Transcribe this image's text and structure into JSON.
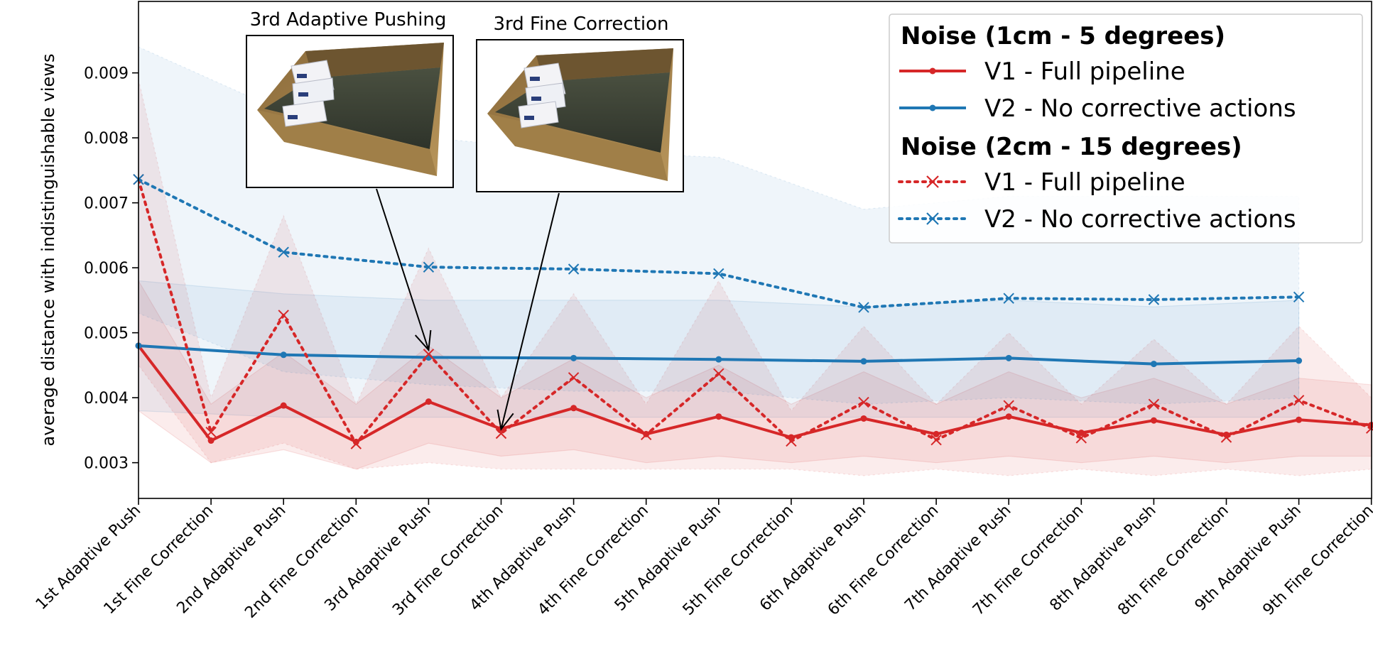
{
  "chart_data": {
    "type": "line",
    "ylabel": "average distance with indistinguishable views",
    "ylim": [
      0.00245,
      0.0101
    ],
    "yticks": [
      "0.003",
      "0.004",
      "0.005",
      "0.006",
      "0.007",
      "0.008",
      "0.009"
    ],
    "yticks_values": [
      0.003,
      0.004,
      0.005,
      0.006,
      0.007,
      0.008,
      0.009
    ],
    "categories": [
      "1st Adaptive Push",
      "1st Fine Correction",
      "2nd Adaptive Push",
      "2nd Fine Correction",
      "3rd Adaptive Push",
      "3rd Fine Correction",
      "4th Adaptive Push",
      "4th Fine Correction",
      "5th Adaptive Push",
      "5th Fine Correction",
      "6th Adaptive Push",
      "6th Fine Correction",
      "7th Adaptive Push",
      "7th Fine Correction",
      "8th Adaptive Push",
      "8th Fine Correction",
      "9th Adaptive Push",
      "9th Fine Correction"
    ],
    "grid": false,
    "legend_position": "top-right",
    "legend_groups": [
      {
        "title": "Noise (1cm - 5 degrees)",
        "series": [
          0,
          1
        ]
      },
      {
        "title": "Noise (2cm - 15 degrees)",
        "series": [
          2,
          3
        ]
      }
    ],
    "series": [
      {
        "name": "V1 - Full pipeline",
        "color": "#d62728",
        "dash": "solid",
        "marker": "dot",
        "values": [
          0.0048,
          0.00334,
          0.00388,
          0.00332,
          0.00394,
          0.00352,
          0.00384,
          0.00344,
          0.00371,
          0.00339,
          0.00368,
          0.00344,
          0.00371,
          0.00346,
          0.00365,
          0.00343,
          0.00366,
          0.00358
        ],
        "band_upper": [
          0.0058,
          0.0039,
          0.0047,
          0.0039,
          0.0048,
          0.004,
          0.0046,
          0.004,
          0.0045,
          0.0039,
          0.0044,
          0.0039,
          0.0044,
          0.004,
          0.0043,
          0.0039,
          0.0043,
          0.0042
        ],
        "band_lower": [
          0.0038,
          0.003,
          0.0032,
          0.0029,
          0.0033,
          0.0031,
          0.0032,
          0.003,
          0.0031,
          0.003,
          0.0031,
          0.003,
          0.0031,
          0.003,
          0.0031,
          0.003,
          0.0031,
          0.0031
        ]
      },
      {
        "name": "V2 - No corrective actions",
        "color": "#1f77b4",
        "dash": "solid",
        "marker": "dot",
        "values": [
          0.0048,
          null,
          0.00466,
          null,
          0.00462,
          null,
          0.00461,
          null,
          0.00459,
          null,
          0.00456,
          null,
          0.00461,
          null,
          0.00452,
          null,
          0.00457,
          null
        ],
        "band_upper": [
          0.0058,
          null,
          0.0056,
          null,
          0.0055,
          null,
          0.0055,
          null,
          0.0055,
          null,
          0.0054,
          null,
          0.0055,
          null,
          0.0054,
          null,
          0.0055,
          null
        ],
        "band_lower": [
          0.0038,
          null,
          0.0037,
          null,
          0.0037,
          null,
          0.0037,
          null,
          0.0037,
          null,
          0.0037,
          null,
          0.0037,
          null,
          0.0037,
          null,
          0.0037,
          null
        ]
      },
      {
        "name": "V1 - Full pipeline",
        "color": "#d62728",
        "dash": "dotted",
        "marker": "x",
        "values": [
          0.00736,
          0.00347,
          0.00527,
          0.00329,
          0.00467,
          0.00345,
          0.00431,
          0.00343,
          0.00437,
          0.00333,
          0.00393,
          0.00335,
          0.00388,
          0.00338,
          0.0039,
          0.00339,
          0.00396,
          0.00353
        ],
        "band_upper": [
          0.0089,
          0.004,
          0.0068,
          0.0039,
          0.0063,
          0.004,
          0.0056,
          0.0039,
          0.0058,
          0.0038,
          0.0051,
          0.0039,
          0.005,
          0.0039,
          0.0049,
          0.0039,
          0.0051,
          0.004
        ],
        "band_lower": [
          0.0045,
          0.003,
          0.0033,
          0.0029,
          0.003,
          0.0029,
          0.0029,
          0.0029,
          0.0029,
          0.0029,
          0.0028,
          0.0029,
          0.0028,
          0.0029,
          0.0028,
          0.0029,
          0.0028,
          0.0029
        ]
      },
      {
        "name": "V2 - No corrective actions",
        "color": "#1f77b4",
        "dash": "dotted",
        "marker": "x",
        "values": [
          0.00736,
          null,
          0.00624,
          null,
          0.00601,
          null,
          0.00598,
          null,
          0.00591,
          null,
          0.00539,
          null,
          0.00553,
          null,
          0.00551,
          null,
          0.00555,
          null
        ],
        "band_upper": [
          0.0094,
          null,
          0.0084,
          null,
          0.008,
          null,
          0.0078,
          null,
          0.0077,
          null,
          0.0069,
          null,
          0.0071,
          null,
          0.0071,
          null,
          0.0071,
          null
        ],
        "band_lower": [
          0.0053,
          null,
          0.0044,
          null,
          0.0042,
          null,
          0.0041,
          null,
          0.0041,
          null,
          0.0039,
          null,
          0.004,
          null,
          0.0039,
          null,
          0.004,
          null
        ]
      }
    ],
    "insets": [
      {
        "title": "3rd Adaptive Pushing",
        "points_to": 4,
        "points_to_series": 2,
        "image": "bin-with-boxes-scene"
      },
      {
        "title": "3rd Fine Correction",
        "points_to": 5,
        "points_to_series": 2,
        "image": "bin-with-boxes-scene"
      }
    ]
  }
}
